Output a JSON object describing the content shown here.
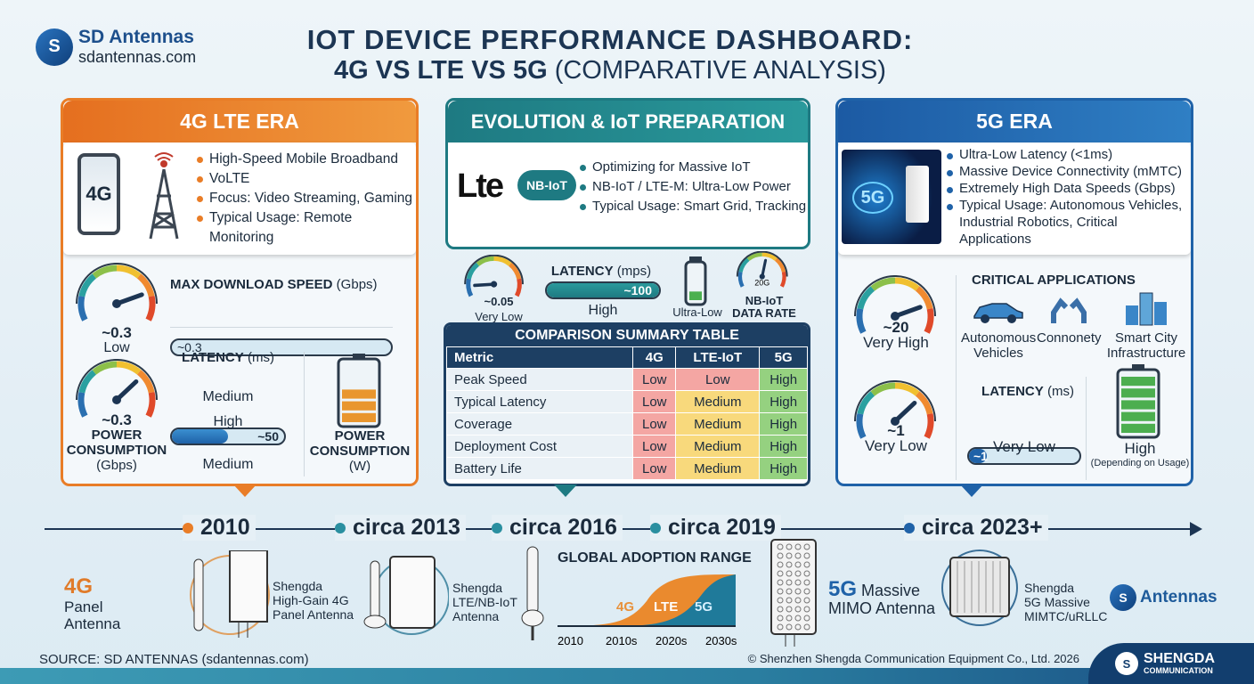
{
  "brand": {
    "name": "SD Antennas",
    "url": "sdantennas.com"
  },
  "title": {
    "line1": "IOT DEVICE PERFORMANCE DASHBOARD:",
    "line2_bold": "4G VS LTE VS 5G",
    "line2_rest": " (COMPARATIVE ANALYSIS)"
  },
  "colors": {
    "orange": "#e97d27",
    "teal": "#1e7a82",
    "blue": "#1f62a8",
    "navy": "#1c3553",
    "low": "#f4a6a3",
    "medium": "#f8d97c",
    "high": "#95d180"
  },
  "left": {
    "header": "4G LTE ERA",
    "phone_label": "4G",
    "bullets": [
      "High-Speed Mobile Broadband",
      "VoLTE",
      "Focus: Video Streaming, Gaming",
      "Typical Usage: Remote Monitoring"
    ],
    "gauge1": {
      "value": "~0.3",
      "label": "Low",
      "level": 0.8
    },
    "speed": {
      "title": "MAX DOWNLOAD SPEED",
      "unit": " (Gbps)",
      "value": "~0.3"
    },
    "gauge2": {
      "value": "~0.3",
      "label1": "POWER",
      "label2": "CONSUMPTION",
      "label3": "(Gbps)",
      "level": 0.7
    },
    "latency": {
      "title": "LATENCY",
      "unit": " (ms)",
      "value": "~50",
      "label": "Medium",
      "fill": 0.5
    },
    "power_bar": {
      "top": "High",
      "label": "Medium",
      "fill": 0.6
    },
    "battery": {
      "label1": "POWER",
      "label2": "CONSUMPTION",
      "label3": "(W)",
      "level": 0.5
    }
  },
  "middle": {
    "header": "EVOLUTION & IoT PREPARATION",
    "lte_logo": "Lte",
    "nbiot_logo": "NB-IoT",
    "bullets": [
      "Optimizing for Massive IoT",
      "NB-IoT / LTE-M: Ultra-Low Power",
      "Typical Usage: Smart Grid, Tracking"
    ],
    "gauge1": {
      "value": "~0.05",
      "label": "Very Low",
      "level": 0.1
    },
    "latency": {
      "title": "LATENCY",
      "unit": " (mps)",
      "value": "~100",
      "label": "High",
      "fill": 1
    },
    "battery": {
      "label": "Ultra-Low",
      "level": 0.35
    },
    "gauge2": {
      "inner": "20G",
      "label1": "NB-IoT",
      "label2": "DATA RATE",
      "level": 0.55
    },
    "table": {
      "title": "COMPARISON SUMMARY TABLE",
      "columns": [
        "Metric",
        "4G",
        "LTE-IoT",
        "5G"
      ],
      "rows": [
        [
          "Peak Speed",
          "Low",
          "Low",
          "High"
        ],
        [
          "Typical Latency",
          "Low",
          "Medium",
          "High"
        ],
        [
          "Coverage",
          "Low",
          "Medium",
          "High"
        ],
        [
          "Deployment Cost",
          "Low",
          "Medium",
          "High"
        ],
        [
          "Battery Life",
          "Low",
          "Medium",
          "High"
        ]
      ]
    }
  },
  "right": {
    "header": "5G ERA",
    "image_label": "5G",
    "bullets": [
      "Ultra-Low Latency (<1ms)",
      "Massive Device Connectivity (mMTC)",
      "Extremely High Data Speeds (Gbps)",
      "Typical Usage: Autonomous Vehicles, Industrial Robotics, Critical Applications"
    ],
    "gauge1": {
      "value": "~20",
      "label": "Very High",
      "level": 0.8
    },
    "gauge2": {
      "value": "~1",
      "label": "Very Low",
      "level": 0.7
    },
    "apps": {
      "title": "CRITICAL APPLICATIONS",
      "items": [
        {
          "label1": "Autonomous",
          "label2": "Vehicles",
          "icon": "car-icon"
        },
        {
          "label1": "Connonety",
          "label2": "",
          "icon": "robot-arm-icon"
        },
        {
          "label1": "Smart City",
          "label2": "Infrastructure",
          "icon": "city-icon"
        }
      ]
    },
    "latency": {
      "title": "LATENCY",
      "unit": " (ms)",
      "value": "~1",
      "label": "Very Low",
      "fill": 0.08
    },
    "battery": {
      "label": "High",
      "sub": "(Depending on Usage)",
      "level": 1
    }
  },
  "timeline": [
    "2010",
    "circa 2013",
    "circa 2016",
    "circa 2019",
    "circa 2023+"
  ],
  "products": {
    "p4g": {
      "big": "4G",
      "l1": "Panel",
      "l2": "Antenna"
    },
    "p4g_desc": [
      "Shengda",
      "High-Gain 4G",
      "Panel Antenna"
    ],
    "plte_desc": [
      "Shengda",
      "LTE/NB-IoT",
      "Antenna"
    ],
    "p5g": {
      "big": "5G",
      "l1": " Massive",
      "l2": "MIMO Antenna"
    },
    "p5g_desc": [
      "Shengda",
      "5G Massive",
      "MIMTC/uRLLC"
    ],
    "antennas_logo": "Antennas"
  },
  "chart_data": {
    "type": "area",
    "title": "GLOBAL ADOPTION RANGE",
    "categories": [
      "2010",
      "2010s",
      "2020s",
      "2030s"
    ],
    "series": [
      {
        "name": "4G"
      },
      {
        "name": "LTE"
      },
      {
        "name": "5G"
      }
    ]
  },
  "footer": {
    "source": "SOURCE: SD ANTENNAS (sdantennas.com)",
    "copyright": "© Shenzhen Shengda Communication Equipment Co., Ltd. 2026",
    "brand1": "SHENGDA",
    "brand2": "COMMUNICATION"
  }
}
